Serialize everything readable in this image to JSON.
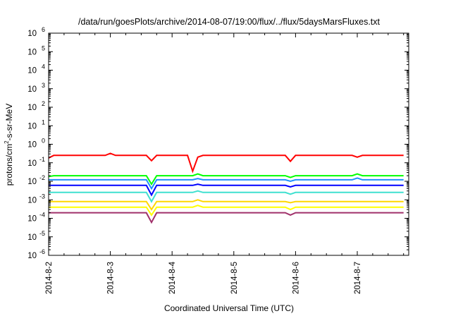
{
  "chart_data": {
    "type": "line",
    "title": "/data/run/goesPlots/archive/2014-08-07/19:00/flux/../flux/5daysMarsFluxes.txt",
    "xlabel": "Coordinated Universal Time (UTC)",
    "ylabel": {
      "prefix": "protons/cm",
      "sup": "2",
      "suffix": "-s-sr-MeV"
    },
    "yscale": "log",
    "ylim": [
      1e-06,
      1000000.0
    ],
    "y_ticks": [
      {
        "value": 1e-06,
        "base": "10",
        "exp": "-6"
      },
      {
        "value": 1e-05,
        "base": "10",
        "exp": "-5"
      },
      {
        "value": 0.0001,
        "base": "10",
        "exp": "-4"
      },
      {
        "value": 0.001,
        "base": "10",
        "exp": "-3"
      },
      {
        "value": 0.01,
        "base": "10",
        "exp": "-2"
      },
      {
        "value": 0.1,
        "base": "10",
        "exp": "-1"
      },
      {
        "value": 1,
        "base": "10",
        "exp": "0"
      },
      {
        "value": 10,
        "base": "10",
        "exp": "1"
      },
      {
        "value": 100,
        "base": "10",
        "exp": "2"
      },
      {
        "value": 1000,
        "base": "10",
        "exp": "3"
      },
      {
        "value": 10000,
        "base": "10",
        "exp": "4"
      },
      {
        "value": 100000,
        "base": "10",
        "exp": "5"
      },
      {
        "value": 1000000,
        "base": "10",
        "exp": "6"
      }
    ],
    "xlim": [
      "2014-08-02T00:00",
      "2014-08-07T20:00"
    ],
    "x_ticks": [
      "2014-8-2",
      "2014-8-3",
      "2014-8-4",
      "2014-8-5",
      "2014-8-6",
      "2014-8-7"
    ],
    "grid": false,
    "legend": "none",
    "sample_interval_hours": 2,
    "series": [
      {
        "color": "#ff0000",
        "min": 0.06,
        "max": 0.25,
        "events": [
          {
            "start": 0,
            "value": 0.18
          },
          {
            "start": 24,
            "value": 0.32
          },
          {
            "start": 40,
            "value": 0.13
          },
          {
            "start": 56,
            "value": 0.035
          },
          {
            "start": 58,
            "value": 0.2
          },
          {
            "start": 94,
            "value": 0.12
          },
          {
            "start": 120,
            "value": 0.2
          }
        ]
      },
      {
        "color": "#00ff00",
        "min": 0.005,
        "max": 0.02,
        "events": [
          {
            "start": 0,
            "value": 0.018
          },
          {
            "start": 40,
            "value": 0.007
          },
          {
            "start": 58,
            "value": 0.025
          },
          {
            "start": 94,
            "value": 0.016
          },
          {
            "start": 120,
            "value": 0.025
          }
        ]
      },
      {
        "color": "#1e90ff",
        "min": 0.0015,
        "max": 0.012,
        "events": [
          {
            "start": 0,
            "value": 0.012
          },
          {
            "start": 40,
            "value": 0.004
          },
          {
            "start": 58,
            "value": 0.014
          },
          {
            "start": 94,
            "value": 0.01
          },
          {
            "start": 120,
            "value": 0.015
          }
        ]
      },
      {
        "color": "#0000ff",
        "min": 0.0006,
        "max": 0.006,
        "events": [
          {
            "start": 0,
            "value": 0.006
          },
          {
            "start": 40,
            "value": 0.0018
          },
          {
            "start": 58,
            "value": 0.007
          },
          {
            "start": 94,
            "value": 0.005
          },
          {
            "start": 120,
            "value": 0.006
          }
        ]
      },
      {
        "color": "#40e0d0",
        "min": 0.0003,
        "max": 0.0025,
        "events": [
          {
            "start": 0,
            "value": 0.0025
          },
          {
            "start": 40,
            "value": 0.0008
          },
          {
            "start": 58,
            "value": 0.003
          },
          {
            "start": 94,
            "value": 0.002
          },
          {
            "start": 120,
            "value": 0.0025
          }
        ]
      },
      {
        "color": "#ffd700",
        "min": 8e-05,
        "max": 0.0008,
        "events": [
          {
            "start": 0,
            "value": 0.0008
          },
          {
            "start": 40,
            "value": 0.0003
          },
          {
            "start": 58,
            "value": 0.001
          },
          {
            "start": 94,
            "value": 0.0007
          },
          {
            "start": 120,
            "value": 0.0008
          }
        ]
      },
      {
        "color": "#ffff00",
        "min": 4e-05,
        "max": 0.0004,
        "events": [
          {
            "start": 0,
            "value": 0.0004
          },
          {
            "start": 40,
            "value": 0.00015
          },
          {
            "start": 58,
            "value": 0.0005
          },
          {
            "start": 94,
            "value": 0.0003
          },
          {
            "start": 120,
            "value": 0.0004
          }
        ]
      },
      {
        "color": "#a0306a",
        "min": 3e-06,
        "max": 0.0002,
        "events": [
          {
            "start": 0,
            "value": 0.0002
          },
          {
            "start": 40,
            "value": 6e-05
          },
          {
            "start": 58,
            "value": 0.0002
          },
          {
            "start": 94,
            "value": 0.00015
          },
          {
            "start": 120,
            "value": 0.0002
          }
        ]
      }
    ]
  }
}
